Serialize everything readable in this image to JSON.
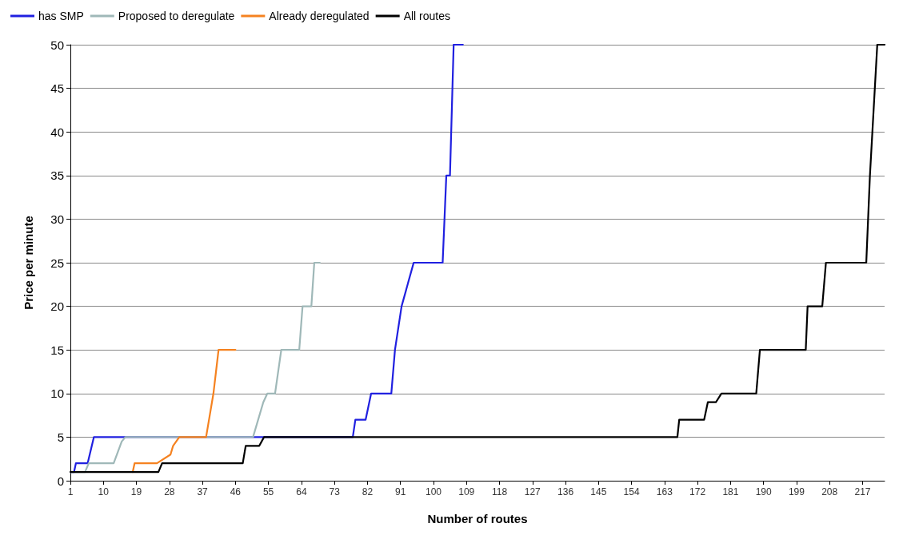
{
  "chart_data": {
    "type": "line",
    "xlabel": "Number of routes",
    "ylabel": "Price per minute",
    "xlim": [
      1,
      223
    ],
    "xticks": [
      1,
      10,
      19,
      28,
      37,
      46,
      55,
      64,
      73,
      82,
      91,
      100,
      109,
      118,
      127,
      136,
      145,
      154,
      163,
      172,
      181,
      190,
      199,
      208,
      217
    ],
    "ylim": [
      0,
      50
    ],
    "yticks": [
      0,
      5,
      10,
      15,
      20,
      25,
      30,
      35,
      40,
      45,
      50
    ],
    "grid": "y",
    "legend": "top",
    "marker": "none",
    "line_style": "solid",
    "series": [
      {
        "name": "has SMP",
        "color": "#2020e0",
        "x": [
          1,
          2,
          2.5,
          5.7,
          7.4,
          78,
          78.7,
          81.5,
          83,
          88.5,
          89.5,
          91.3,
          94.6,
          102.5,
          103.5,
          104.5,
          105.5,
          108
        ],
        "values": [
          1,
          1,
          2,
          2,
          5,
          5,
          7,
          7,
          10,
          10,
          15,
          20,
          25,
          25,
          35,
          35,
          50,
          50
        ]
      },
      {
        "name": "Proposed to deregulate",
        "color": "#9fb8b8",
        "x": [
          1,
          5,
          6,
          12.8,
          15,
          16,
          50.8,
          53.6,
          54.7,
          56.8,
          58.5,
          63.4,
          64.3,
          66.7,
          67.5,
          69
        ],
        "values": [
          1,
          1,
          2,
          2,
          4.5,
          5,
          5,
          9,
          10,
          10,
          15,
          15,
          20,
          20,
          25,
          25
        ]
      },
      {
        "name": "Already deregulated",
        "color": "#f58220",
        "x": [
          18,
          18.5,
          24.6,
          28.3,
          29,
          30.7,
          38,
          40,
          41.4,
          46
        ],
        "values": [
          1,
          2,
          2,
          3,
          4,
          5,
          5,
          10,
          15,
          15
        ]
      },
      {
        "name": "All routes",
        "color": "#000000",
        "x": [
          1,
          25,
          26,
          48,
          48.8,
          52.5,
          53.8,
          166.5,
          167,
          173.8,
          174.8,
          177,
          178.5,
          188,
          189,
          201.5,
          202,
          206,
          207,
          218,
          219,
          221,
          223
        ],
        "values": [
          1,
          1,
          2,
          2,
          4,
          4,
          5,
          5,
          7,
          7,
          9,
          9,
          10,
          10,
          15,
          15,
          20,
          20,
          25,
          25,
          35,
          50,
          50
        ]
      }
    ]
  }
}
